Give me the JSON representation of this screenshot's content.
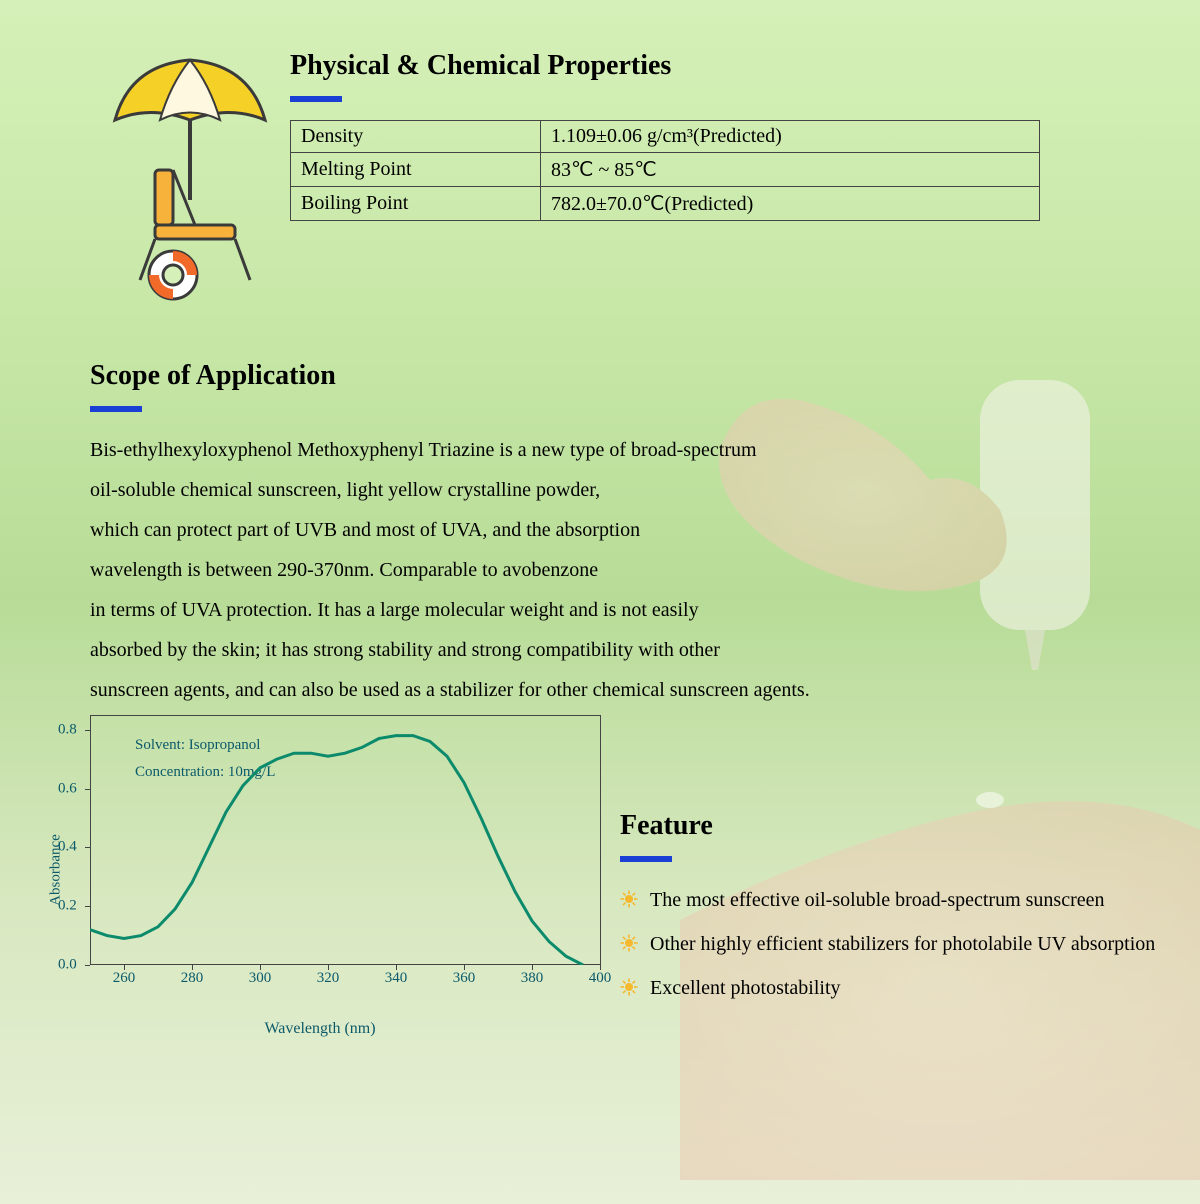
{
  "properties": {
    "title": "Physical & Chemical Properties",
    "underline_color": "#1a3fd4",
    "rows": [
      {
        "label": "Density",
        "value": "1.109±0.06 g/cm³(Predicted)"
      },
      {
        "label": "Melting Point",
        "value": "83℃ ~ 85℃"
      },
      {
        "label": "Boiling Point",
        "value": "782.0±70.0℃(Predicted)"
      }
    ]
  },
  "scope": {
    "title": "Scope of Application",
    "body": "Bis-ethylhexyloxyphenol Methoxyphenyl Triazine is a new type of broad-spectrum\noil-soluble chemical sunscreen, light yellow crystalline powder,\nwhich can protect part of UVB and most of UVA, and the absorption\nwavelength is between 290-370nm. Comparable to avobenzone\nin terms of UVA protection. It has a large molecular weight and is not easily\nabsorbed by the skin; it has strong stability and strong compatibility with other\n sunscreen agents, and can also be used as a stabilizer for other chemical sunscreen agents."
  },
  "chart": {
    "type": "line",
    "title_lines": [
      "Solvent: Isopropanol",
      "Concentration: 10mg/L"
    ],
    "ylabel": "Absorbance",
    "xlabel": "Wavelength (nm)",
    "xlim": [
      250,
      400
    ],
    "ylim": [
      0.0,
      0.85
    ],
    "xticks": [
      260,
      280,
      300,
      320,
      340,
      360,
      380,
      400
    ],
    "yticks": [
      0.0,
      0.2,
      0.4,
      0.6,
      0.8
    ],
    "line_color": "#0c8a6c",
    "line_width": 3,
    "axis_color": "#444444",
    "tick_label_color": "#0b5a6a",
    "label_fontsize": 15,
    "background_color": "transparent",
    "data": [
      {
        "x": 250,
        "y": 0.12
      },
      {
        "x": 255,
        "y": 0.1
      },
      {
        "x": 260,
        "y": 0.09
      },
      {
        "x": 265,
        "y": 0.1
      },
      {
        "x": 270,
        "y": 0.13
      },
      {
        "x": 275,
        "y": 0.19
      },
      {
        "x": 280,
        "y": 0.28
      },
      {
        "x": 285,
        "y": 0.4
      },
      {
        "x": 290,
        "y": 0.52
      },
      {
        "x": 295,
        "y": 0.61
      },
      {
        "x": 300,
        "y": 0.67
      },
      {
        "x": 305,
        "y": 0.7
      },
      {
        "x": 310,
        "y": 0.72
      },
      {
        "x": 315,
        "y": 0.72
      },
      {
        "x": 320,
        "y": 0.71
      },
      {
        "x": 325,
        "y": 0.72
      },
      {
        "x": 330,
        "y": 0.74
      },
      {
        "x": 335,
        "y": 0.77
      },
      {
        "x": 340,
        "y": 0.78
      },
      {
        "x": 345,
        "y": 0.78
      },
      {
        "x": 350,
        "y": 0.76
      },
      {
        "x": 355,
        "y": 0.71
      },
      {
        "x": 360,
        "y": 0.62
      },
      {
        "x": 365,
        "y": 0.5
      },
      {
        "x": 370,
        "y": 0.37
      },
      {
        "x": 375,
        "y": 0.25
      },
      {
        "x": 380,
        "y": 0.15
      },
      {
        "x": 385,
        "y": 0.08
      },
      {
        "x": 390,
        "y": 0.03
      },
      {
        "x": 395,
        "y": 0.0
      }
    ]
  },
  "feature": {
    "title": "Feature",
    "bullet_icon_color": "#f5b82e",
    "items": [
      "The most effective oil-soluble broad-spectrum sunscreen",
      "Other highly efficient stabilizers for photolabile UV absorption",
      "Excellent photostability"
    ]
  }
}
